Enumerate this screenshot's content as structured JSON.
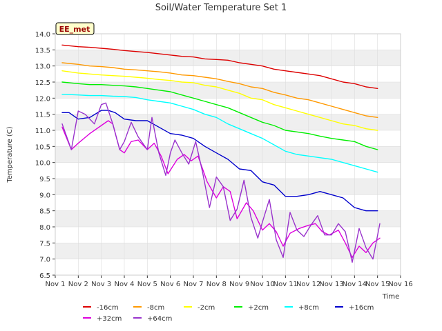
{
  "chart_data": {
    "type": "line",
    "title": "Soil/Water Temperature Set 1",
    "badge": "EE_met",
    "xlabel": "Time",
    "ylabel": "Temperature (C)",
    "xlim": [
      1,
      16
    ],
    "ylim": [
      6.5,
      14.0
    ],
    "x_ticks": [
      1,
      2,
      3,
      4,
      5,
      6,
      7,
      8,
      9,
      10,
      11,
      12,
      13,
      14,
      15,
      16
    ],
    "x_tick_labels": [
      "Nov 1",
      "Nov 2",
      "Nov 3",
      "Nov 4",
      "Nov 5",
      "Nov 6",
      "Nov 7",
      "Nov 8",
      "Nov 9",
      "Nov 10",
      "Nov 11",
      "Nov 12",
      "Nov 13",
      "Nov 14",
      "Nov 15",
      "Nov 16"
    ],
    "y_ticks": [
      6.5,
      7.0,
      7.5,
      8.0,
      8.5,
      9.0,
      9.5,
      10.0,
      10.5,
      11.0,
      11.5,
      12.0,
      12.5,
      13.0,
      13.5,
      14.0
    ],
    "y_tick_labels": [
      "6.5",
      "7.0",
      "7.5",
      "8.0",
      "8.5",
      "9.0",
      "9.5",
      "10.0",
      "10.5",
      "11.0",
      "11.5",
      "12.0",
      "12.5",
      "13.0",
      "13.5",
      "14.0"
    ],
    "legend_position": "bottom",
    "series": [
      {
        "name": "-16cm",
        "color": "#dd0000",
        "x": [
          1.3,
          2,
          2.5,
          3,
          3.5,
          4,
          4.5,
          5,
          5.5,
          6,
          6.5,
          7,
          7.5,
          8,
          8.5,
          9,
          9.5,
          10,
          10.5,
          11,
          11.5,
          12,
          12.5,
          13,
          13.5,
          14,
          14.5,
          15
        ],
        "y": [
          13.65,
          13.6,
          13.58,
          13.55,
          13.52,
          13.48,
          13.45,
          13.42,
          13.38,
          13.34,
          13.3,
          13.28,
          13.22,
          13.2,
          13.18,
          13.1,
          13.05,
          13.0,
          12.9,
          12.85,
          12.8,
          12.75,
          12.7,
          12.6,
          12.5,
          12.45,
          12.35,
          12.3
        ]
      },
      {
        "name": "-8cm",
        "color": "#ff9900",
        "x": [
          1.3,
          2,
          2.5,
          3,
          3.5,
          4,
          4.5,
          5,
          5.5,
          6,
          6.5,
          7,
          7.5,
          8,
          8.5,
          9,
          9.5,
          10,
          10.5,
          11,
          11.5,
          12,
          12.5,
          13,
          13.5,
          14,
          14.5,
          15
        ],
        "y": [
          13.1,
          13.05,
          13.0,
          12.98,
          12.95,
          12.9,
          12.88,
          12.85,
          12.82,
          12.78,
          12.72,
          12.7,
          12.65,
          12.6,
          12.52,
          12.45,
          12.35,
          12.3,
          12.18,
          12.1,
          12.0,
          11.95,
          11.85,
          11.75,
          11.65,
          11.55,
          11.45,
          11.4
        ]
      },
      {
        "name": "-2cm",
        "color": "#ffff00",
        "x": [
          1.3,
          2,
          2.5,
          3,
          3.5,
          4,
          4.5,
          5,
          5.5,
          6,
          6.5,
          7,
          7.5,
          8,
          8.5,
          9,
          9.5,
          10,
          10.5,
          11,
          11.5,
          12,
          12.5,
          13,
          13.5,
          14,
          14.5,
          15
        ],
        "y": [
          12.85,
          12.78,
          12.75,
          12.72,
          12.7,
          12.68,
          12.65,
          12.62,
          12.58,
          12.55,
          12.5,
          12.48,
          12.4,
          12.35,
          12.25,
          12.15,
          12.0,
          11.95,
          11.8,
          11.7,
          11.6,
          11.5,
          11.4,
          11.3,
          11.2,
          11.15,
          11.05,
          11.0
        ]
      },
      {
        "name": "+2cm",
        "color": "#00ee00",
        "x": [
          1.3,
          2,
          2.5,
          3,
          3.5,
          4,
          4.5,
          5,
          5.5,
          6,
          6.5,
          7,
          7.5,
          8,
          8.5,
          9,
          9.5,
          10,
          10.5,
          11,
          11.5,
          12,
          12.5,
          13,
          13.5,
          14,
          14.5,
          15
        ],
        "y": [
          12.5,
          12.45,
          12.42,
          12.42,
          12.4,
          12.38,
          12.35,
          12.3,
          12.25,
          12.2,
          12.1,
          12.0,
          11.9,
          11.8,
          11.7,
          11.55,
          11.4,
          11.25,
          11.15,
          11.0,
          10.95,
          10.9,
          10.82,
          10.75,
          10.7,
          10.65,
          10.5,
          10.4
        ]
      },
      {
        "name": "+8cm",
        "color": "#00ffff",
        "x": [
          1.3,
          2,
          2.5,
          3,
          3.5,
          4,
          4.5,
          5,
          5.5,
          6,
          6.5,
          7,
          7.5,
          8,
          8.5,
          9,
          9.5,
          10,
          10.5,
          11,
          11.5,
          12,
          12.5,
          13,
          13.5,
          14,
          14.5,
          15
        ],
        "y": [
          12.12,
          12.1,
          12.08,
          12.08,
          12.06,
          12.05,
          12.02,
          11.95,
          11.9,
          11.85,
          11.75,
          11.65,
          11.5,
          11.4,
          11.2,
          11.05,
          10.9,
          10.75,
          10.55,
          10.35,
          10.25,
          10.2,
          10.15,
          10.1,
          10.0,
          9.9,
          9.8,
          9.7
        ]
      },
      {
        "name": "+16cm",
        "color": "#0000cc",
        "x": [
          1.3,
          1.6,
          2,
          2.5,
          3,
          3.3,
          3.6,
          4,
          4.5,
          5,
          5.5,
          6,
          6.5,
          7,
          7.5,
          8,
          8.5,
          9,
          9.5,
          10,
          10.5,
          11,
          11.5,
          12,
          12.5,
          13,
          13.5,
          14,
          14.5,
          15
        ],
        "y": [
          11.55,
          11.55,
          11.35,
          11.4,
          11.62,
          11.62,
          11.55,
          11.35,
          11.3,
          11.3,
          11.1,
          10.9,
          10.85,
          10.75,
          10.5,
          10.3,
          10.1,
          9.8,
          9.75,
          9.4,
          9.3,
          8.95,
          8.95,
          9.0,
          9.1,
          9.0,
          8.9,
          8.6,
          8.5,
          8.5
        ]
      },
      {
        "name": "+32cm",
        "color": "#dd00dd",
        "x": [
          1.3,
          1.7,
          2,
          2.5,
          3,
          3.3,
          3.5,
          3.8,
          4,
          4.3,
          4.6,
          5,
          5.3,
          5.6,
          5.9,
          6.3,
          6.6,
          6.9,
          7.2,
          7.6,
          8,
          8.3,
          8.6,
          8.9,
          9.3,
          9.6,
          10,
          10.3,
          10.6,
          10.9,
          11.2,
          11.6,
          12,
          12.3,
          12.6,
          12.9,
          13.3,
          13.6,
          13.9,
          14.2,
          14.5,
          14.8,
          15.1
        ],
        "y": [
          11.1,
          10.4,
          10.6,
          10.9,
          11.15,
          11.3,
          11.2,
          10.4,
          10.3,
          10.65,
          10.7,
          10.4,
          10.6,
          10.2,
          9.65,
          10.1,
          10.25,
          10.05,
          10.2,
          9.4,
          8.9,
          9.25,
          9.1,
          8.25,
          8.75,
          8.5,
          7.9,
          8.1,
          7.85,
          7.4,
          7.8,
          7.95,
          8.05,
          8.1,
          7.85,
          7.75,
          7.9,
          7.5,
          7.05,
          7.4,
          7.2,
          7.5,
          7.65
        ]
      },
      {
        "name": "+64cm",
        "color": "#9933cc",
        "x": [
          1.3,
          1.7,
          2,
          2.3,
          2.7,
          3,
          3.2,
          3.5,
          3.8,
          4,
          4.3,
          4.6,
          5,
          5.2,
          5.5,
          5.8,
          6,
          6.2,
          6.5,
          6.8,
          7.1,
          7.4,
          7.7,
          8,
          8.3,
          8.6,
          8.9,
          9.2,
          9.5,
          9.8,
          10,
          10.3,
          10.6,
          10.9,
          11.2,
          11.5,
          11.8,
          12.1,
          12.4,
          12.7,
          13,
          13.3,
          13.6,
          13.9,
          14.2,
          14.5,
          14.8,
          15.1
        ],
        "y": [
          11.2,
          10.4,
          11.6,
          11.5,
          11.2,
          11.8,
          11.85,
          11.2,
          10.4,
          10.65,
          11.25,
          10.8,
          10.4,
          11.4,
          10.3,
          9.6,
          10.3,
          10.7,
          10.3,
          9.95,
          10.65,
          9.7,
          8.6,
          9.55,
          9.25,
          8.2,
          8.55,
          9.45,
          8.3,
          7.65,
          8.15,
          8.85,
          7.6,
          7.05,
          8.45,
          7.9,
          7.7,
          8.05,
          8.35,
          7.75,
          7.75,
          8.1,
          7.85,
          6.9,
          7.95,
          7.35,
          7.0,
          8.1
        ]
      }
    ]
  }
}
